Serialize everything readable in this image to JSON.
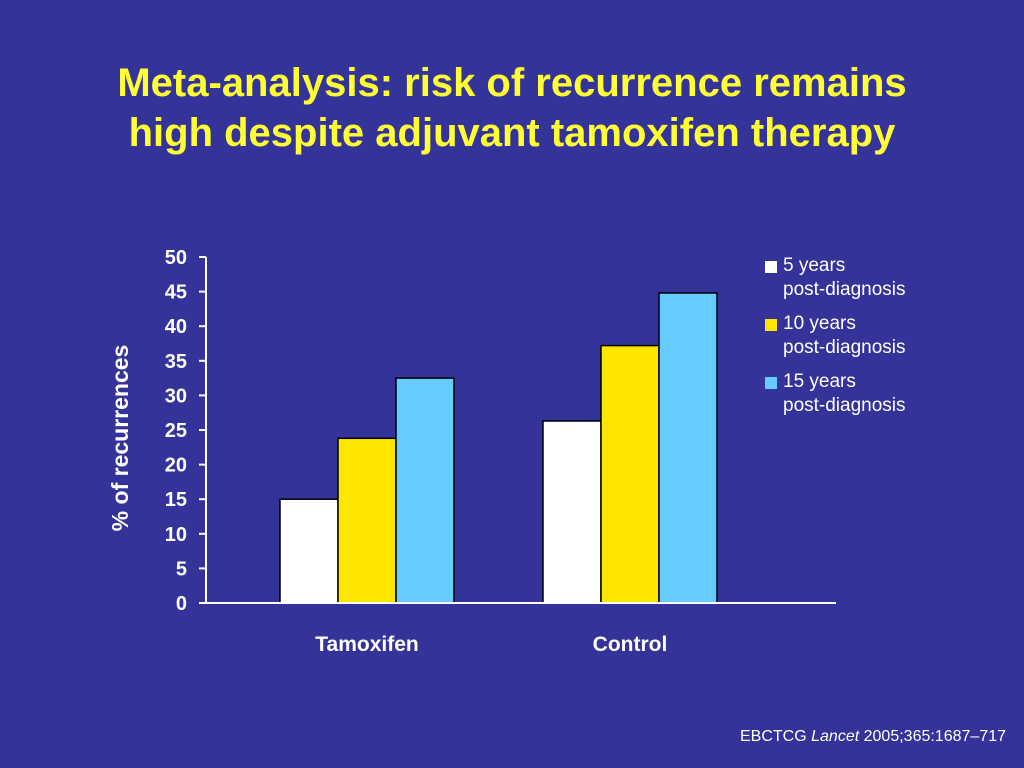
{
  "title": {
    "line1": "Meta-analysis: risk of recurrence remains",
    "line2": "high despite adjuvant tamoxifen therapy"
  },
  "citation": {
    "prefix": "EBCTCG",
    "journal": "Lancet",
    "suffix": "2005;365:1687–717"
  },
  "colors": {
    "background": "#333399",
    "title": "#ffff33",
    "series_5": "#ffffff",
    "series_10": "#ffe600",
    "series_15": "#66ccff"
  },
  "chart_data": {
    "type": "bar",
    "title": "",
    "xlabel": "",
    "ylabel": "% of recurrences",
    "ylim": [
      0,
      50
    ],
    "yticks": [
      0,
      5,
      10,
      15,
      20,
      25,
      30,
      35,
      40,
      45,
      50
    ],
    "grid": false,
    "legend_position": "top-right",
    "categories": [
      "Tamoxifen",
      "Control"
    ],
    "series": [
      {
        "name": "5 years\npost-diagnosis",
        "color": "#ffffff",
        "values": [
          15,
          26.3
        ]
      },
      {
        "name": "10 years\npost-diagnosis",
        "color": "#ffe600",
        "values": [
          23.8,
          37.2
        ]
      },
      {
        "name": "15 years\npost-diagnosis",
        "color": "#66ccff",
        "values": [
          32.5,
          44.8
        ]
      }
    ]
  }
}
